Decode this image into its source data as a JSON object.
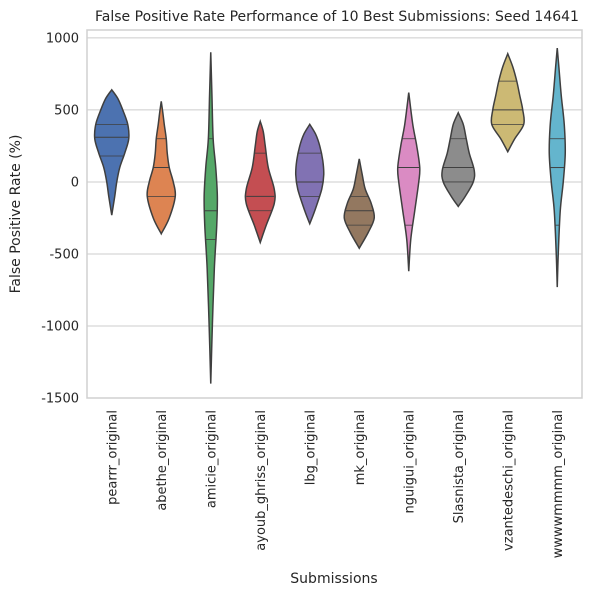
{
  "chart_data": {
    "type": "violin",
    "title": "False Positive Rate Performance of 10 Best Submissions: Seed 14641",
    "x_label": "Submissions",
    "y_label": "False Positive Rate (%)",
    "ylim": [
      -1500,
      1055
    ],
    "yticks": [
      1000,
      500,
      0,
      -500,
      -1000,
      -1500
    ],
    "grid": true,
    "categories": [
      "pearrr_original",
      "abethe_original",
      "amicie_original",
      "ayoub_ghriss_original",
      "lbg_original",
      "mk_original",
      "nguigui_original",
      "Slasnista_original",
      "vzantedeschi_original",
      "wwwwmmmm_original"
    ],
    "series": [
      {
        "color": "#4c72b0",
        "y": [
          -230,
          -100,
          0,
          100,
          200,
          300,
          400,
          500,
          580,
          640
        ],
        "density": [
          0,
          0.15,
          0.25,
          0.4,
          0.65,
          0.85,
          0.8,
          0.55,
          0.3,
          0
        ],
        "quartiles": [
          180,
          310,
          400
        ]
      },
      {
        "color": "#dd8452",
        "y": [
          -360,
          -250,
          -100,
          0,
          100,
          200,
          300,
          400,
          480,
          560
        ],
        "density": [
          0,
          0.4,
          0.7,
          0.6,
          0.4,
          0.3,
          0.25,
          0.15,
          0.08,
          0
        ],
        "quartiles": [
          -100,
          100,
          300
        ]
      },
      {
        "color": "#55a868",
        "y": [
          -1400,
          -1000,
          -600,
          -300,
          -100,
          100,
          300,
          600,
          900
        ],
        "density": [
          0,
          0.08,
          0.18,
          0.3,
          0.33,
          0.25,
          0.12,
          0.06,
          0
        ],
        "quartiles": [
          -400,
          -200,
          300
        ]
      },
      {
        "color": "#c44e52",
        "y": [
          -420,
          -300,
          -150,
          -50,
          100,
          250,
          350,
          420
        ],
        "density": [
          0,
          0.3,
          0.7,
          0.7,
          0.4,
          0.25,
          0.15,
          0
        ],
        "quartiles": [
          -200,
          -100,
          200
        ]
      },
      {
        "color": "#8172b3",
        "y": [
          -290,
          -200,
          -50,
          50,
          150,
          250,
          330,
          400
        ],
        "density": [
          0,
          0.25,
          0.6,
          0.7,
          0.65,
          0.5,
          0.3,
          0
        ],
        "quartiles": [
          -100,
          0,
          200
        ]
      },
      {
        "color": "#937860",
        "y": [
          -460,
          -350,
          -250,
          -150,
          -50,
          50,
          160
        ],
        "density": [
          0,
          0.45,
          0.75,
          0.6,
          0.3,
          0.15,
          0
        ],
        "quartiles": [
          -300,
          -200,
          -100
        ]
      },
      {
        "color": "#da8bc3",
        "y": [
          -620,
          -400,
          -200,
          0,
          100,
          250,
          400,
          620
        ],
        "density": [
          0,
          0.1,
          0.3,
          0.5,
          0.55,
          0.4,
          0.2,
          0
        ],
        "quartiles": [
          -300,
          100,
          300
        ]
      },
      {
        "color": "#8c8c8c",
        "y": [
          -170,
          -100,
          0,
          80,
          200,
          300,
          400,
          480
        ],
        "density": [
          0,
          0.35,
          0.75,
          0.8,
          0.55,
          0.4,
          0.25,
          0
        ],
        "quartiles": [
          0,
          100,
          300
        ]
      },
      {
        "color": "#ccb974",
        "y": [
          210,
          300,
          400,
          500,
          600,
          700,
          800,
          890
        ],
        "density": [
          0,
          0.35,
          0.8,
          0.75,
          0.6,
          0.45,
          0.25,
          0
        ],
        "quartiles": [
          400,
          500,
          700
        ]
      },
      {
        "color": "#64b5cd",
        "y": [
          -730,
          -500,
          -200,
          0,
          200,
          400,
          600,
          800,
          930
        ],
        "density": [
          0,
          0.05,
          0.15,
          0.3,
          0.4,
          0.35,
          0.2,
          0.08,
          0
        ],
        "quartiles": [
          -300,
          100,
          300
        ]
      }
    ]
  }
}
